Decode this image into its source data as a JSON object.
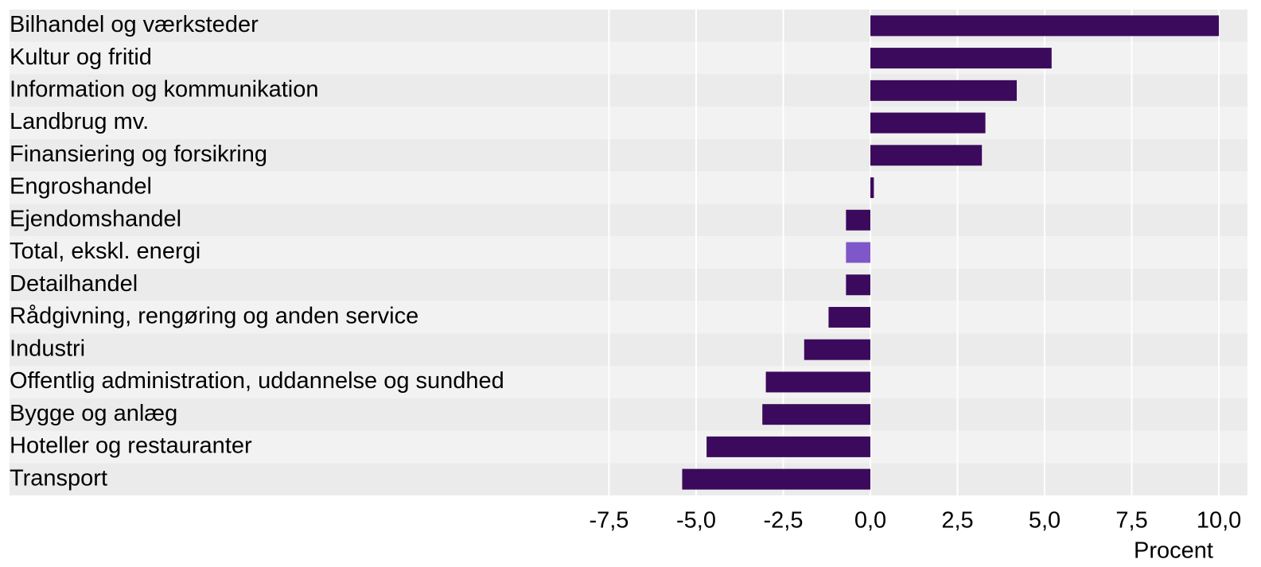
{
  "chart_data": {
    "type": "bar",
    "orientation": "horizontal",
    "categories": [
      "Bilhandel og værksteder",
      "Kultur og fritid",
      "Information og kommunikation",
      "Landbrug mv.",
      "Finansiering og forsikring",
      "Engroshandel",
      "Ejendomshandel",
      "Total, ekskl. energi",
      "Detailhandel",
      "Rådgivning, rengøring og anden service",
      "Industri",
      "Offentlig administration, uddannelse og sundhed",
      "Bygge og anlæg",
      "Hoteller og restauranter",
      "Transport"
    ],
    "values": [
      10.0,
      5.2,
      4.2,
      3.3,
      3.2,
      0.1,
      -0.7,
      -0.7,
      -0.7,
      -1.2,
      -1.9,
      -3.0,
      -3.1,
      -4.7,
      -5.4
    ],
    "colors": [
      "#3b0a5c",
      "#3b0a5c",
      "#3b0a5c",
      "#3b0a5c",
      "#3b0a5c",
      "#3b0a5c",
      "#3b0a5c",
      "#7e57c8",
      "#3b0a5c",
      "#3b0a5c",
      "#3b0a5c",
      "#3b0a5c",
      "#3b0a5c",
      "#3b0a5c",
      "#3b0a5c"
    ],
    "xlabel": "Procent",
    "xlim": [
      -24.7,
      10.82
    ],
    "xticks": [
      {
        "value": -7.5,
        "label": "-7,5"
      },
      {
        "value": -5,
        "label": "-5,0"
      },
      {
        "value": -2.5,
        "label": "-2,5"
      },
      {
        "value": 0,
        "label": "0,0"
      },
      {
        "value": 2.5,
        "label": "2,5"
      },
      {
        "value": 5,
        "label": "5,0"
      },
      {
        "value": 7.5,
        "label": "7,5"
      },
      {
        "value": 10,
        "label": "10,0"
      }
    ],
    "grid": true
  }
}
